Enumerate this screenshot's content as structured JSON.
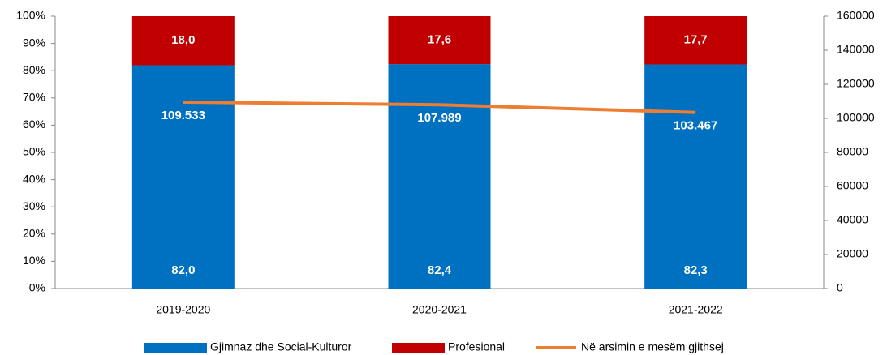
{
  "chart_data": {
    "type": "stacked-bar-line",
    "categories": [
      "2019-2020",
      "2020-2021",
      "2021-2022"
    ],
    "series": [
      {
        "name": "Gjimnaz dhe Social-Kulturor",
        "color": "#0070c0",
        "values": [
          82.0,
          82.4,
          82.3
        ],
        "value_labels": [
          "82,0",
          "82,4",
          "82,3"
        ]
      },
      {
        "name": "Profesional",
        "color": "#c00000",
        "values": [
          18.0,
          17.6,
          17.7
        ],
        "value_labels": [
          "18,0",
          "17,6",
          "17,7"
        ]
      },
      {
        "name": "Në arsimin e mesëm gjithsej",
        "color": "#ed7d31",
        "axis": "y2",
        "values": [
          109533,
          107989,
          103467
        ],
        "value_labels": [
          "109.533",
          "107.989",
          "103.467"
        ]
      }
    ],
    "ylim": [
      0,
      100
    ],
    "yticks": [
      {
        "value": 0,
        "label": "0%"
      },
      {
        "value": 10,
        "label": "10%"
      },
      {
        "value": 20,
        "label": "20%"
      },
      {
        "value": 30,
        "label": "30%"
      },
      {
        "value": 40,
        "label": "40%"
      },
      {
        "value": 50,
        "label": "50%"
      },
      {
        "value": 60,
        "label": "60%"
      },
      {
        "value": 70,
        "label": "70%"
      },
      {
        "value": 80,
        "label": "80%"
      },
      {
        "value": 90,
        "label": "90%"
      },
      {
        "value": 100,
        "label": "100%"
      }
    ],
    "y2lim": [
      0,
      160000
    ],
    "y2ticks": [
      0,
      20000,
      40000,
      60000,
      80000,
      100000,
      120000,
      140000,
      160000
    ],
    "legend": "bottom"
  }
}
